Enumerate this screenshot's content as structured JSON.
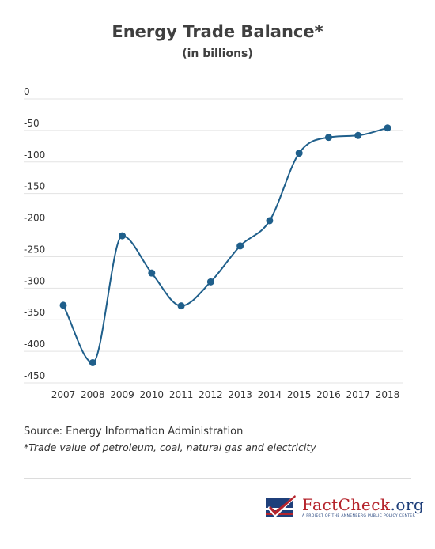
{
  "chart_data": {
    "type": "line",
    "title": "Energy Trade Balance*",
    "subtitle": "(in billions)",
    "x": [
      "2007",
      "2008",
      "2009",
      "2010",
      "2011",
      "2012",
      "2013",
      "2014",
      "2015",
      "2016",
      "2017",
      "2018"
    ],
    "series": [
      {
        "values": [
          -327,
          -418,
          -217,
          -276,
          -328,
          -290,
          -233,
          -193,
          -86,
          -61,
          -58,
          -46
        ]
      }
    ],
    "yticks": [
      0,
      -50,
      -100,
      -150,
      -200,
      -250,
      -300,
      -350,
      -400,
      -450
    ],
    "ylim": [
      -460,
      0
    ],
    "grid": true,
    "color": "#1f5f8b"
  },
  "footer": {
    "source": "Source: Energy Information Administration",
    "note": "*Trade value of petroleum, coal, natural gas and electricity"
  },
  "logo": {
    "brand": "FactCheck",
    "domain": ".org",
    "tagline": "A PROJECT OF THE ANNENBERG PUBLIC POLICY CENTER"
  }
}
